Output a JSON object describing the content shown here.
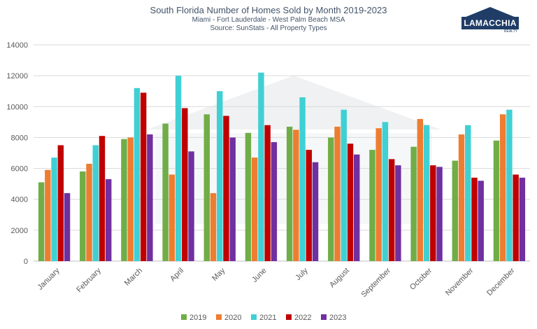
{
  "header": {
    "title": "South Florida Number of Homes Sold by Month 2019-2023",
    "subtitle": "Miami - Fort Lauderdale - West Palm Beach MSA",
    "source": "Source: SunStats - All Property Types"
  },
  "logo": {
    "text": "LAMACCHIA",
    "tagline": "REALTY"
  },
  "colors": {
    "2019": "#70ad47",
    "2020": "#ed7d31",
    "2021": "#3fd0d4",
    "2022": "#c00000",
    "2023": "#7030a0"
  },
  "chart_data": {
    "type": "bar",
    "title": "South Florida Number of Homes Sold by Month 2019-2023",
    "xlabel": "",
    "ylabel": "",
    "ylim": [
      0,
      14000
    ],
    "yticks": [
      0,
      2000,
      4000,
      6000,
      8000,
      10000,
      12000,
      14000
    ],
    "grid": true,
    "legend": "bottom",
    "categories": [
      "January",
      "February",
      "March",
      "April",
      "May",
      "June",
      "July",
      "August",
      "September",
      "October",
      "November",
      "December"
    ],
    "series": [
      {
        "name": "2019",
        "color": "#70ad47",
        "values": [
          5100,
          5800,
          7900,
          8900,
          9500,
          8300,
          8700,
          8000,
          7200,
          7400,
          6500,
          7800
        ]
      },
      {
        "name": "2020",
        "color": "#ed7d31",
        "values": [
          5900,
          6300,
          8000,
          5600,
          4400,
          6700,
          8500,
          8700,
          8600,
          9200,
          8200,
          9500
        ]
      },
      {
        "name": "2021",
        "color": "#3fd0d4",
        "values": [
          6700,
          7500,
          11200,
          12000,
          11000,
          12200,
          10600,
          9800,
          9000,
          8800,
          8800,
          9800
        ]
      },
      {
        "name": "2022",
        "color": "#c00000",
        "values": [
          7500,
          8100,
          10900,
          9900,
          9400,
          8800,
          7200,
          7600,
          6600,
          6200,
          5400,
          5600
        ]
      },
      {
        "name": "2023",
        "color": "#7030a0",
        "values": [
          4400,
          5300,
          8200,
          7100,
          8000,
          7700,
          6400,
          6900,
          6200,
          6100,
          5200,
          5400
        ]
      }
    ]
  }
}
